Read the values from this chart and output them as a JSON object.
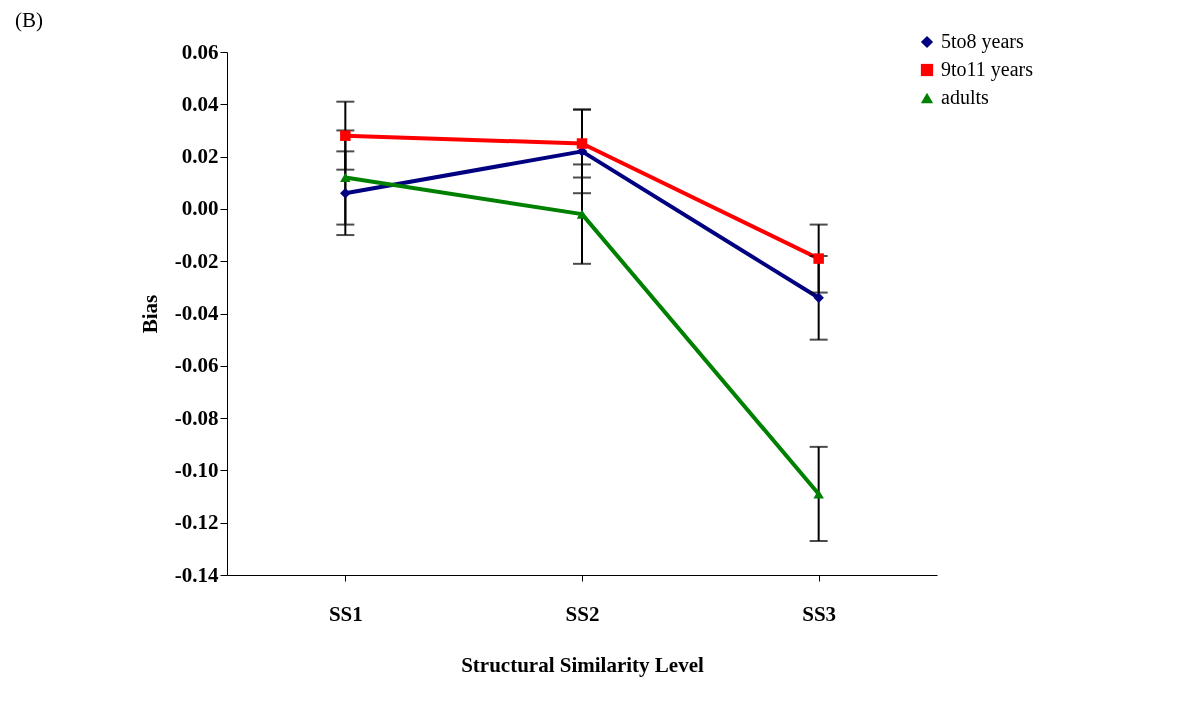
{
  "chart_data": {
    "type": "line",
    "xlabel": "Structural Similarity Level",
    "ylabel": "Bias",
    "annotations": [
      "(B)"
    ],
    "categories": [
      "SS1",
      "SS2",
      "SS3"
    ],
    "series": [
      {
        "name": "5to8 years",
        "color": "#000080",
        "marker": "diamond",
        "values": [
          0.006,
          0.022,
          -0.034
        ],
        "errors": [
          0.016,
          0.016,
          0.016
        ]
      },
      {
        "name": "9to11 years",
        "color": "#ff0000",
        "marker": "square",
        "values": [
          0.028,
          0.025,
          -0.019
        ],
        "errors": [
          0.013,
          0.013,
          0.013
        ]
      },
      {
        "name": "adults",
        "color": "#008000",
        "marker": "triangle",
        "values": [
          0.012,
          -0.002,
          -0.109
        ],
        "errors": [
          0.018,
          0.019,
          0.018
        ]
      }
    ],
    "ylim": [
      -0.14,
      0.06
    ],
    "yticks": [
      {
        "value": -0.14,
        "label": "-0.14"
      },
      {
        "value": -0.12,
        "label": "-0.12"
      },
      {
        "value": -0.1,
        "label": "-0.10"
      },
      {
        "value": -0.08,
        "label": "-0.08"
      },
      {
        "value": -0.06,
        "label": "-0.06"
      },
      {
        "value": -0.04,
        "label": "-0.04"
      },
      {
        "value": -0.02,
        "label": "-0.02"
      },
      {
        "value": 0,
        "label": "0.00"
      },
      {
        "value": 0.02,
        "label": "0.02"
      },
      {
        "value": 0.04,
        "label": "0.04"
      },
      {
        "value": 0.06,
        "label": "0.06"
      }
    ],
    "grid": false,
    "legend": "top right",
    "line_style": "solid"
  }
}
